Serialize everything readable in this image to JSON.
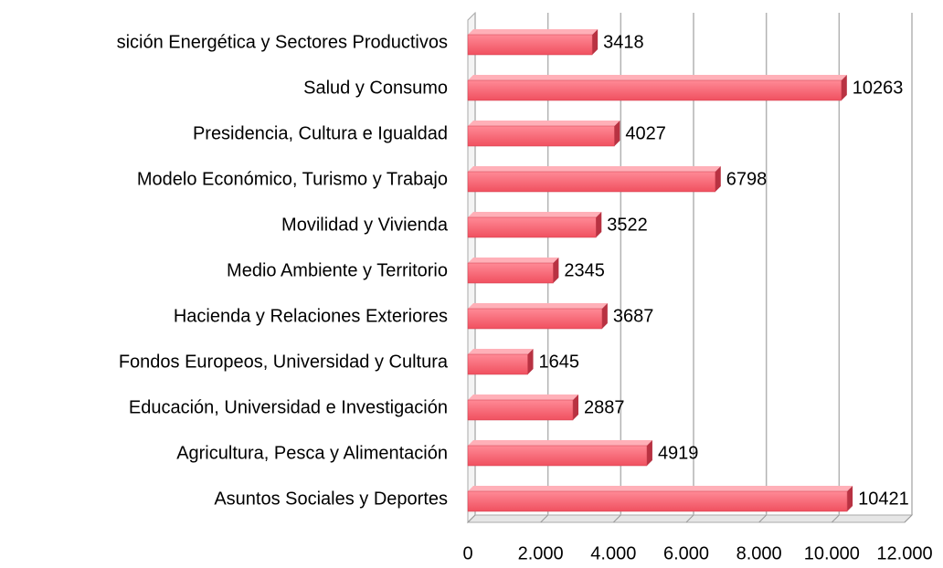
{
  "chart_data": {
    "type": "bar",
    "orientation": "horizontal",
    "categories": [
      "sición Energética y Sectores Productivos",
      "Salud y Consumo",
      "Presidencia, Cultura e Igualdad",
      "Modelo Económico, Turismo y Trabajo",
      "Movilidad y Vivienda",
      "Medio Ambiente y Territorio",
      "Hacienda y Relaciones Exteriores",
      "Fondos Europeos, Universidad y Cultura",
      "Educación, Universidad e Investigación",
      "Agricultura, Pesca y Alimentación",
      "Asuntos Sociales y Deportes"
    ],
    "values": [
      3418,
      10263,
      4027,
      6798,
      3522,
      2345,
      3687,
      1645,
      2887,
      4919,
      10421
    ],
    "color": "#ff6b7a",
    "xlim": [
      0,
      12000
    ],
    "xticks": [
      0,
      {
        "value": 2000,
        "label": "2.000"
      },
      {
        "value": 4000,
        "label": "4.000"
      },
      {
        "value": 6000,
        "label": "6.000"
      },
      {
        "value": 8000,
        "label": "8.000"
      },
      {
        "value": 10000,
        "label": "10.000"
      },
      {
        "value": 12000,
        "label": "12.000"
      }
    ],
    "grid": true
  }
}
